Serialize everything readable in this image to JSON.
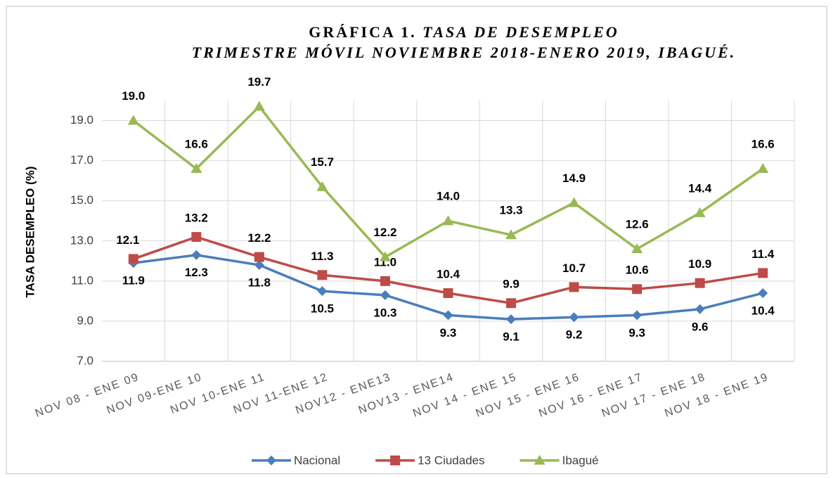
{
  "chart_data": {
    "type": "line",
    "title": [
      "GRÁFICA 1.",
      "TASA DE DESEMPLEO",
      "TRIMESTRE MÓVIL NOVIEMBRE 2018-ENERO 2019, IBAGUÉ."
    ],
    "y_label": "TASA DESEMPLEO (%)",
    "categories": [
      "NOV 08 - ENE 09",
      "NOV 09-ENE 10",
      "NOV 10-ENE 11",
      "NOV 11-ENE 12",
      "NOV12 - ENE13",
      "NOV13 - ENE14",
      "NOV 14 - ENE 15",
      "NOV 15 - ENE 16",
      "NOV 16 - ENE 17",
      "NOV 17 - ENE 18",
      "NOV 18 - ENE 19"
    ],
    "series": [
      {
        "name": "Nacional",
        "color": "#4a7ebb",
        "marker": "diamond",
        "values": [
          11.9,
          12.3,
          11.8,
          10.5,
          10.3,
          9.3,
          9.1,
          9.2,
          9.3,
          9.6,
          10.4
        ],
        "value_labels": [
          "11.9",
          "12.3",
          "11.8",
          "10.5",
          "10.3",
          "9.3",
          "9.1",
          "9.2",
          "9.3",
          "9.6",
          "10.4"
        ]
      },
      {
        "name": "13 Ciudades",
        "color": "#be4b48",
        "marker": "square",
        "values": [
          12.1,
          13.2,
          12.2,
          11.3,
          11.0,
          10.4,
          9.9,
          10.7,
          10.6,
          10.9,
          11.4
        ],
        "value_labels": [
          "12.1",
          "13.2",
          "12.2",
          "11.3",
          "11.0",
          "10.4",
          "9.9",
          "10.7",
          "10.6",
          "10.9",
          "11.4"
        ]
      },
      {
        "name": "Ibagué",
        "color": "#98b954",
        "marker": "triangle",
        "values": [
          19.0,
          16.6,
          19.7,
          15.7,
          12.2,
          14.0,
          13.3,
          14.9,
          12.6,
          14.4,
          16.6
        ],
        "value_labels": [
          "19.0",
          "16.6",
          "19.7",
          "15.7",
          "12.2",
          "14.0",
          "13.3",
          "14.9",
          "12.6",
          "14.4",
          "16.6"
        ]
      }
    ],
    "ylim": [
      7,
      20
    ],
    "yticks": [
      {
        "value": 7,
        "label": "7.0"
      },
      {
        "value": 9,
        "label": "9.0"
      },
      {
        "value": 11,
        "label": "11.0"
      },
      {
        "value": 13,
        "label": "13.0"
      },
      {
        "value": 15,
        "label": "15.0"
      },
      {
        "value": 17,
        "label": "17.0"
      },
      {
        "value": 19,
        "label": "19.0"
      }
    ],
    "grid": true,
    "legend": "bottom"
  }
}
